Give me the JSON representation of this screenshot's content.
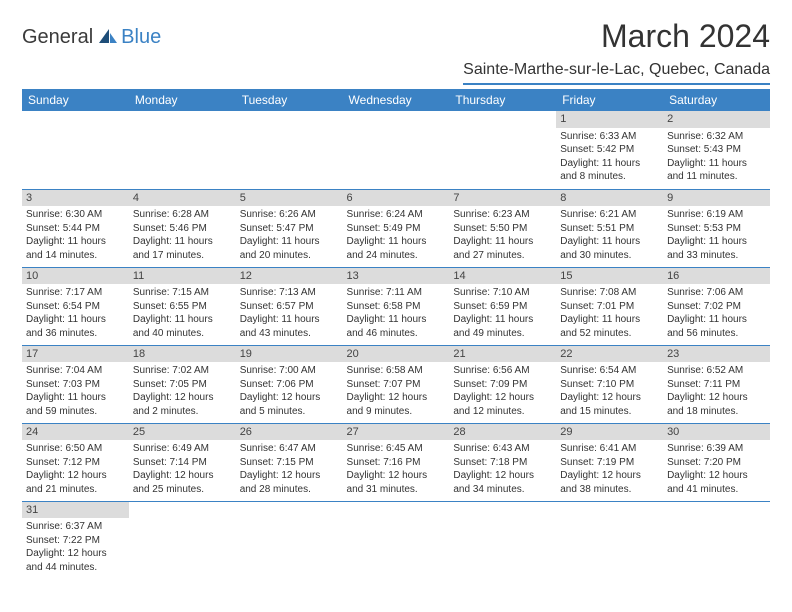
{
  "logo": {
    "text1": "General",
    "text2": "Blue"
  },
  "title": "March 2024",
  "location": "Sainte-Marthe-sur-le-Lac, Quebec, Canada",
  "header_bg": "#3b82c4",
  "header_fg": "#ffffff",
  "daynum_bg": "#dcdcdc",
  "rule_color": "#3b82c4",
  "font_family": "Arial, Helvetica, sans-serif",
  "title_fontsize": 32,
  "location_fontsize": 16,
  "dayheader_fontsize": 12,
  "cell_fontsize": 10,
  "days": [
    "Sunday",
    "Monday",
    "Tuesday",
    "Wednesday",
    "Thursday",
    "Friday",
    "Saturday"
  ],
  "weeks": [
    [
      null,
      null,
      null,
      null,
      null,
      {
        "n": "1",
        "sr": "Sunrise: 6:33 AM",
        "ss": "Sunset: 5:42 PM",
        "dl1": "Daylight: 11 hours",
        "dl2": "and 8 minutes."
      },
      {
        "n": "2",
        "sr": "Sunrise: 6:32 AM",
        "ss": "Sunset: 5:43 PM",
        "dl1": "Daylight: 11 hours",
        "dl2": "and 11 minutes."
      }
    ],
    [
      {
        "n": "3",
        "sr": "Sunrise: 6:30 AM",
        "ss": "Sunset: 5:44 PM",
        "dl1": "Daylight: 11 hours",
        "dl2": "and 14 minutes."
      },
      {
        "n": "4",
        "sr": "Sunrise: 6:28 AM",
        "ss": "Sunset: 5:46 PM",
        "dl1": "Daylight: 11 hours",
        "dl2": "and 17 minutes."
      },
      {
        "n": "5",
        "sr": "Sunrise: 6:26 AM",
        "ss": "Sunset: 5:47 PM",
        "dl1": "Daylight: 11 hours",
        "dl2": "and 20 minutes."
      },
      {
        "n": "6",
        "sr": "Sunrise: 6:24 AM",
        "ss": "Sunset: 5:49 PM",
        "dl1": "Daylight: 11 hours",
        "dl2": "and 24 minutes."
      },
      {
        "n": "7",
        "sr": "Sunrise: 6:23 AM",
        "ss": "Sunset: 5:50 PM",
        "dl1": "Daylight: 11 hours",
        "dl2": "and 27 minutes."
      },
      {
        "n": "8",
        "sr": "Sunrise: 6:21 AM",
        "ss": "Sunset: 5:51 PM",
        "dl1": "Daylight: 11 hours",
        "dl2": "and 30 minutes."
      },
      {
        "n": "9",
        "sr": "Sunrise: 6:19 AM",
        "ss": "Sunset: 5:53 PM",
        "dl1": "Daylight: 11 hours",
        "dl2": "and 33 minutes."
      }
    ],
    [
      {
        "n": "10",
        "sr": "Sunrise: 7:17 AM",
        "ss": "Sunset: 6:54 PM",
        "dl1": "Daylight: 11 hours",
        "dl2": "and 36 minutes."
      },
      {
        "n": "11",
        "sr": "Sunrise: 7:15 AM",
        "ss": "Sunset: 6:55 PM",
        "dl1": "Daylight: 11 hours",
        "dl2": "and 40 minutes."
      },
      {
        "n": "12",
        "sr": "Sunrise: 7:13 AM",
        "ss": "Sunset: 6:57 PM",
        "dl1": "Daylight: 11 hours",
        "dl2": "and 43 minutes."
      },
      {
        "n": "13",
        "sr": "Sunrise: 7:11 AM",
        "ss": "Sunset: 6:58 PM",
        "dl1": "Daylight: 11 hours",
        "dl2": "and 46 minutes."
      },
      {
        "n": "14",
        "sr": "Sunrise: 7:10 AM",
        "ss": "Sunset: 6:59 PM",
        "dl1": "Daylight: 11 hours",
        "dl2": "and 49 minutes."
      },
      {
        "n": "15",
        "sr": "Sunrise: 7:08 AM",
        "ss": "Sunset: 7:01 PM",
        "dl1": "Daylight: 11 hours",
        "dl2": "and 52 minutes."
      },
      {
        "n": "16",
        "sr": "Sunrise: 7:06 AM",
        "ss": "Sunset: 7:02 PM",
        "dl1": "Daylight: 11 hours",
        "dl2": "and 56 minutes."
      }
    ],
    [
      {
        "n": "17",
        "sr": "Sunrise: 7:04 AM",
        "ss": "Sunset: 7:03 PM",
        "dl1": "Daylight: 11 hours",
        "dl2": "and 59 minutes."
      },
      {
        "n": "18",
        "sr": "Sunrise: 7:02 AM",
        "ss": "Sunset: 7:05 PM",
        "dl1": "Daylight: 12 hours",
        "dl2": "and 2 minutes."
      },
      {
        "n": "19",
        "sr": "Sunrise: 7:00 AM",
        "ss": "Sunset: 7:06 PM",
        "dl1": "Daylight: 12 hours",
        "dl2": "and 5 minutes."
      },
      {
        "n": "20",
        "sr": "Sunrise: 6:58 AM",
        "ss": "Sunset: 7:07 PM",
        "dl1": "Daylight: 12 hours",
        "dl2": "and 9 minutes."
      },
      {
        "n": "21",
        "sr": "Sunrise: 6:56 AM",
        "ss": "Sunset: 7:09 PM",
        "dl1": "Daylight: 12 hours",
        "dl2": "and 12 minutes."
      },
      {
        "n": "22",
        "sr": "Sunrise: 6:54 AM",
        "ss": "Sunset: 7:10 PM",
        "dl1": "Daylight: 12 hours",
        "dl2": "and 15 minutes."
      },
      {
        "n": "23",
        "sr": "Sunrise: 6:52 AM",
        "ss": "Sunset: 7:11 PM",
        "dl1": "Daylight: 12 hours",
        "dl2": "and 18 minutes."
      }
    ],
    [
      {
        "n": "24",
        "sr": "Sunrise: 6:50 AM",
        "ss": "Sunset: 7:12 PM",
        "dl1": "Daylight: 12 hours",
        "dl2": "and 21 minutes."
      },
      {
        "n": "25",
        "sr": "Sunrise: 6:49 AM",
        "ss": "Sunset: 7:14 PM",
        "dl1": "Daylight: 12 hours",
        "dl2": "and 25 minutes."
      },
      {
        "n": "26",
        "sr": "Sunrise: 6:47 AM",
        "ss": "Sunset: 7:15 PM",
        "dl1": "Daylight: 12 hours",
        "dl2": "and 28 minutes."
      },
      {
        "n": "27",
        "sr": "Sunrise: 6:45 AM",
        "ss": "Sunset: 7:16 PM",
        "dl1": "Daylight: 12 hours",
        "dl2": "and 31 minutes."
      },
      {
        "n": "28",
        "sr": "Sunrise: 6:43 AM",
        "ss": "Sunset: 7:18 PM",
        "dl1": "Daylight: 12 hours",
        "dl2": "and 34 minutes."
      },
      {
        "n": "29",
        "sr": "Sunrise: 6:41 AM",
        "ss": "Sunset: 7:19 PM",
        "dl1": "Daylight: 12 hours",
        "dl2": "and 38 minutes."
      },
      {
        "n": "30",
        "sr": "Sunrise: 6:39 AM",
        "ss": "Sunset: 7:20 PM",
        "dl1": "Daylight: 12 hours",
        "dl2": "and 41 minutes."
      }
    ],
    [
      {
        "n": "31",
        "sr": "Sunrise: 6:37 AM",
        "ss": "Sunset: 7:22 PM",
        "dl1": "Daylight: 12 hours",
        "dl2": "and 44 minutes."
      },
      null,
      null,
      null,
      null,
      null,
      null
    ]
  ]
}
